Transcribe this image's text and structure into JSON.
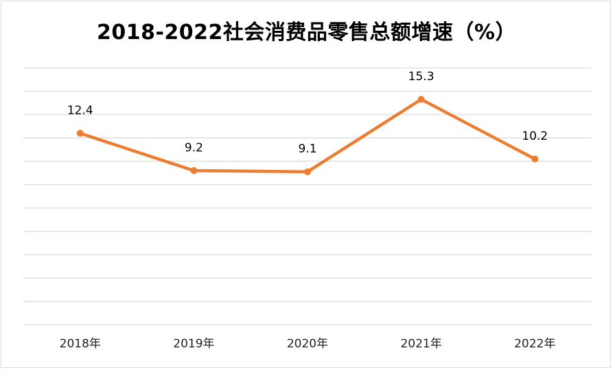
{
  "chart_data": {
    "type": "line",
    "title": "2018-2022社会消费品零售总额增速（%）",
    "xlabel": "",
    "ylabel": "",
    "categories": [
      "2018年",
      "2019年",
      "2020年",
      "2021年",
      "2022年"
    ],
    "series": [
      {
        "values": [
          12.4,
          9.2,
          9.1,
          15.3,
          10.2
        ]
      }
    ],
    "data_labels": [
      "12.4",
      "9.2",
      "9.1",
      "15.3",
      "10.2"
    ],
    "ylim": [
      -4,
      18
    ],
    "grid": true,
    "legend": "none",
    "colors": {
      "line": "#ED7D31",
      "grid": "#d9d9d9"
    }
  }
}
